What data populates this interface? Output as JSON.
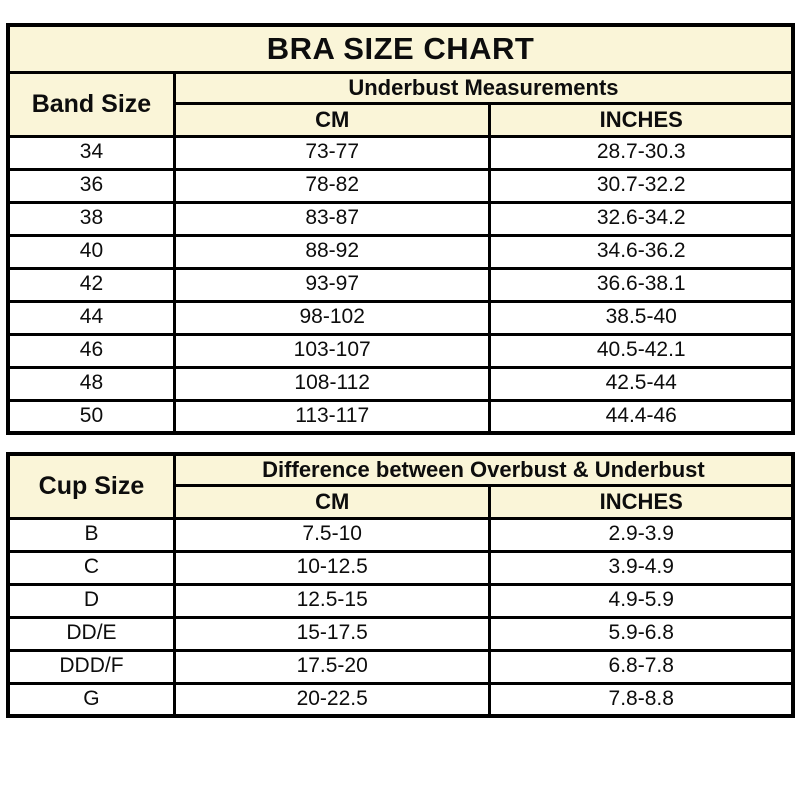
{
  "colors": {
    "page_bg": "#ffffff",
    "header_bg": "#faf5d8",
    "row_bg": "#ffffff",
    "border": "#000000",
    "text": "#0d0d0d"
  },
  "chart_data": [
    {
      "type": "table",
      "title": "BRA SIZE CHART",
      "row_header": "Band Size",
      "group_header": "Underbust Measurements",
      "sub_headers": [
        "CM",
        "INCHES"
      ],
      "rows": [
        [
          "34",
          "73-77",
          "28.7-30.3"
        ],
        [
          "36",
          "78-82",
          "30.7-32.2"
        ],
        [
          "38",
          "83-87",
          "32.6-34.2"
        ],
        [
          "40",
          "88-92",
          "34.6-36.2"
        ],
        [
          "42",
          "93-97",
          "36.6-38.1"
        ],
        [
          "44",
          "98-102",
          "38.5-40"
        ],
        [
          "46",
          "103-107",
          "40.5-42.1"
        ],
        [
          "48",
          "108-112",
          "42.5-44"
        ],
        [
          "50",
          "113-117",
          "44.4-46"
        ]
      ]
    },
    {
      "type": "table",
      "title": "",
      "row_header": "Cup Size",
      "group_header": "Difference between Overbust & Underbust",
      "sub_headers": [
        "CM",
        "INCHES"
      ],
      "rows": [
        [
          "B",
          "7.5-10",
          "2.9-3.9"
        ],
        [
          "C",
          "10-12.5",
          "3.9-4.9"
        ],
        [
          "D",
          "12.5-15",
          "4.9-5.9"
        ],
        [
          "DD/E",
          "15-17.5",
          "5.9-6.8"
        ],
        [
          "DDD/F",
          "17.5-20",
          "6.8-7.8"
        ],
        [
          "G",
          "20-22.5",
          "7.8-8.8"
        ]
      ]
    }
  ]
}
